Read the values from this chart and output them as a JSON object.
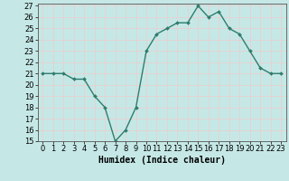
{
  "x": [
    0,
    1,
    2,
    3,
    4,
    5,
    6,
    7,
    8,
    9,
    10,
    11,
    12,
    13,
    14,
    15,
    16,
    17,
    18,
    19,
    20,
    21,
    22,
    23
  ],
  "y": [
    21,
    21,
    21,
    20.5,
    20.5,
    19,
    18,
    15,
    16,
    18,
    23,
    24.5,
    25,
    25.5,
    25.5,
    27,
    26,
    26.5,
    25,
    24.5,
    23,
    21.5,
    21,
    21
  ],
  "line_color": "#2e7d6e",
  "marker_color": "#2e7d6e",
  "bg_color": "#c5e8e6",
  "grid_color": "#e8d0d0",
  "xlabel": "Humidex (Indice chaleur)",
  "ylim": [
    15,
    27
  ],
  "xlim": [
    -0.5,
    23.5
  ],
  "yticks": [
    15,
    16,
    17,
    18,
    19,
    20,
    21,
    22,
    23,
    24,
    25,
    26,
    27
  ],
  "xticks": [
    0,
    1,
    2,
    3,
    4,
    5,
    6,
    7,
    8,
    9,
    10,
    11,
    12,
    13,
    14,
    15,
    16,
    17,
    18,
    19,
    20,
    21,
    22,
    23
  ],
  "xtick_labels": [
    "0",
    "1",
    "2",
    "3",
    "4",
    "5",
    "6",
    "7",
    "8",
    "9",
    "10",
    "11",
    "12",
    "13",
    "14",
    "15",
    "16",
    "17",
    "18",
    "19",
    "20",
    "21",
    "22",
    "23"
  ],
  "xlabel_fontsize": 7,
  "tick_fontsize": 6,
  "linewidth": 1.0,
  "markersize": 2.0
}
